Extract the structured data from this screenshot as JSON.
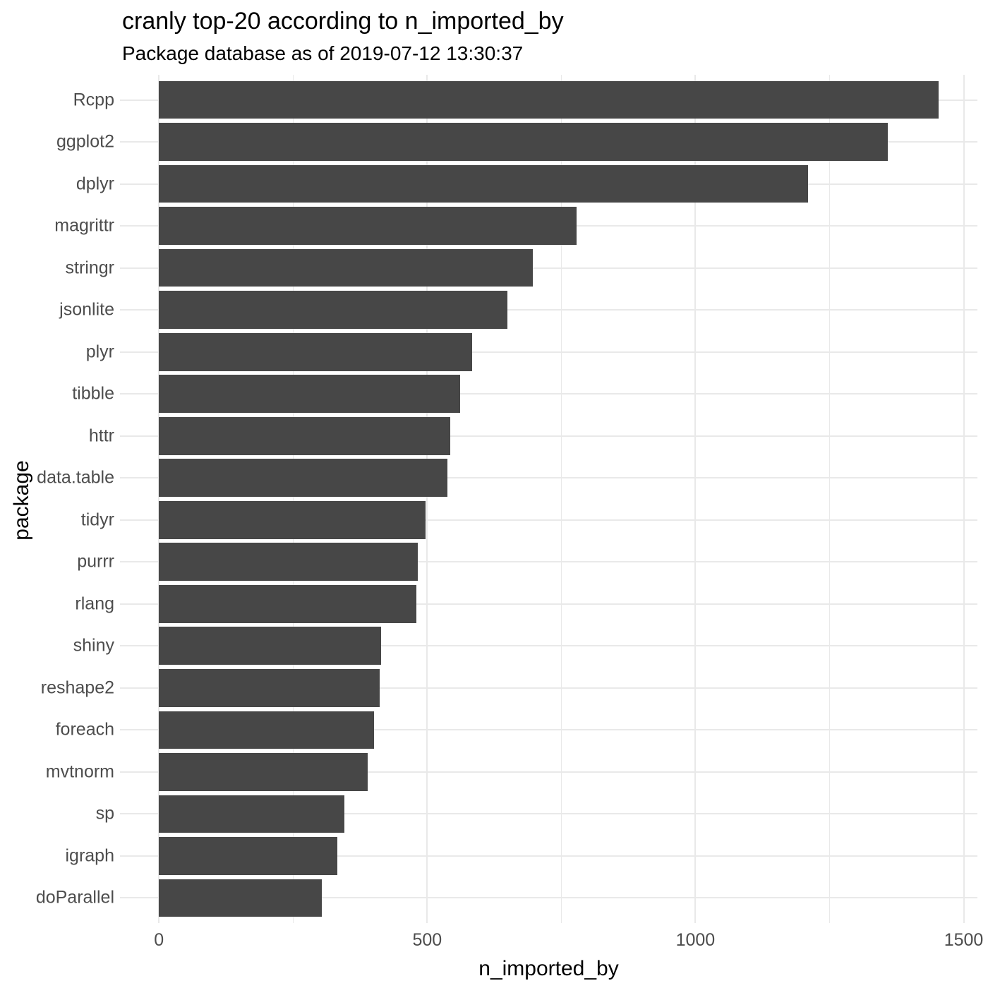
{
  "chart_data": {
    "type": "bar",
    "orientation": "horizontal",
    "title": "cranly top-20 according to n_imported_by",
    "subtitle": "Package database as of 2019-07-12 13:30:37",
    "xlabel": "n_imported_by",
    "ylabel": "package",
    "categories": [
      "Rcpp",
      "ggplot2",
      "dplyr",
      "magrittr",
      "stringr",
      "jsonlite",
      "plyr",
      "tibble",
      "httr",
      "data.table",
      "tidyr",
      "purrr",
      "rlang",
      "shiny",
      "reshape2",
      "foreach",
      "mvtnorm",
      "sp",
      "igraph",
      "doParallel"
    ],
    "values": [
      1453,
      1358,
      1210,
      778,
      697,
      649,
      584,
      561,
      543,
      538,
      497,
      483,
      480,
      414,
      411,
      401,
      389,
      346,
      332,
      303
    ],
    "xlim": [
      0,
      1500
    ],
    "x_major_ticks": [
      0,
      500,
      1000,
      1500
    ],
    "x_minor_ticks": [
      250,
      750,
      1250
    ],
    "grid": true,
    "legend_position": "none",
    "bar_color": "#474747",
    "grid_color": "#E9E9E9",
    "tick_label_color": "#4D4D4D",
    "text_color": "#000000",
    "background_color": "#FFFFFF",
    "bar_width_fraction": 0.9,
    "axis_expansion_mult": 0.05
  }
}
